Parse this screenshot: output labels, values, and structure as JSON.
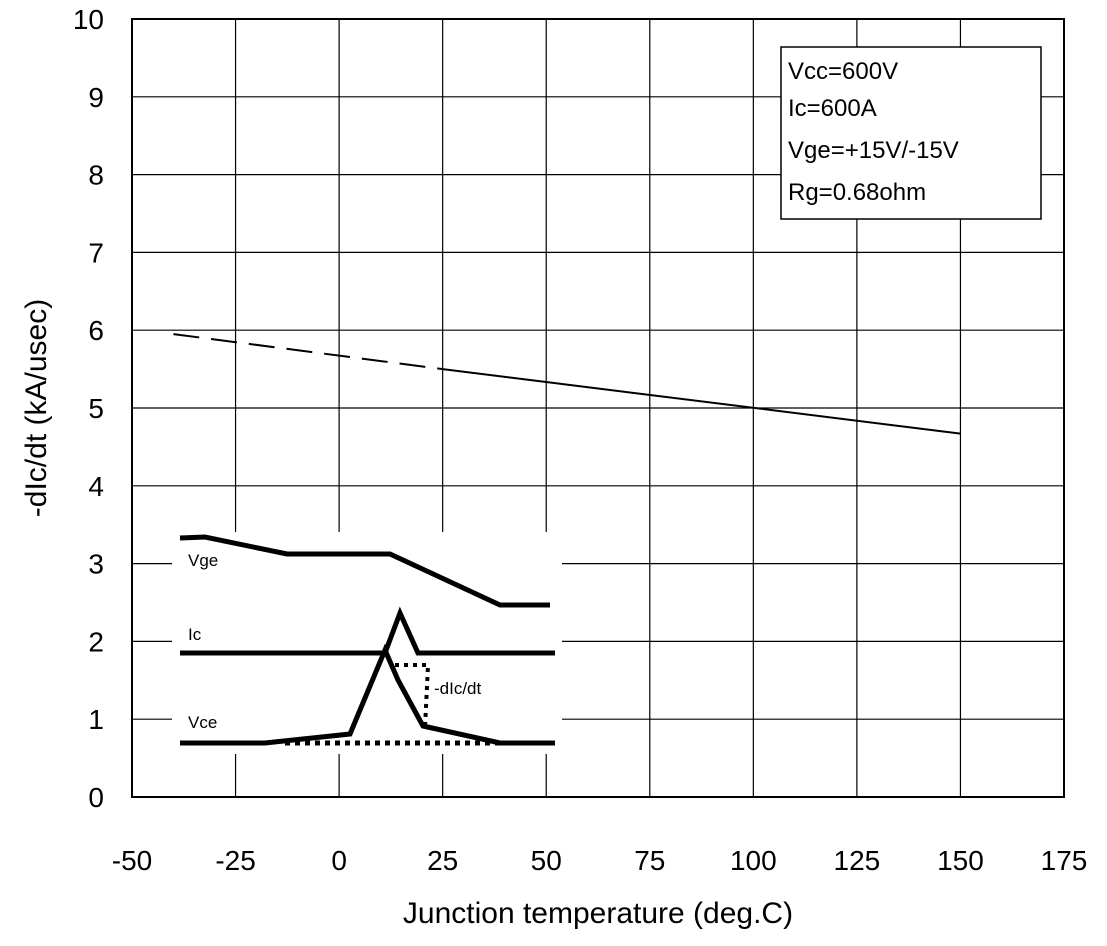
{
  "chart_data": {
    "type": "line",
    "xlabel": "Junction temperature (deg.C)",
    "ylabel": "-dIc/dt (kA/usec)",
    "xlim": [
      -50,
      175
    ],
    "ylim": [
      0,
      10
    ],
    "x_ticks": [
      -50,
      -25,
      0,
      25,
      50,
      75,
      100,
      125,
      150,
      175
    ],
    "y_ticks": [
      0,
      1,
      2,
      3,
      4,
      5,
      6,
      7,
      8,
      9,
      10
    ],
    "grid": true,
    "series": [
      {
        "style": "dashed",
        "x": [
          -40,
          25
        ],
        "y": [
          5.95,
          5.5
        ]
      },
      {
        "style": "solid",
        "x": [
          25,
          150
        ],
        "y": [
          5.5,
          4.67
        ]
      }
    ],
    "conditions": [
      "Vcc=600V",
      "Ic=600A",
      "Vge=+15V/-15V",
      "Rg=0.68ohm"
    ],
    "inset": {
      "labels": [
        "Vge",
        "Ic",
        "Vce",
        "-dIc/dt"
      ]
    }
  }
}
